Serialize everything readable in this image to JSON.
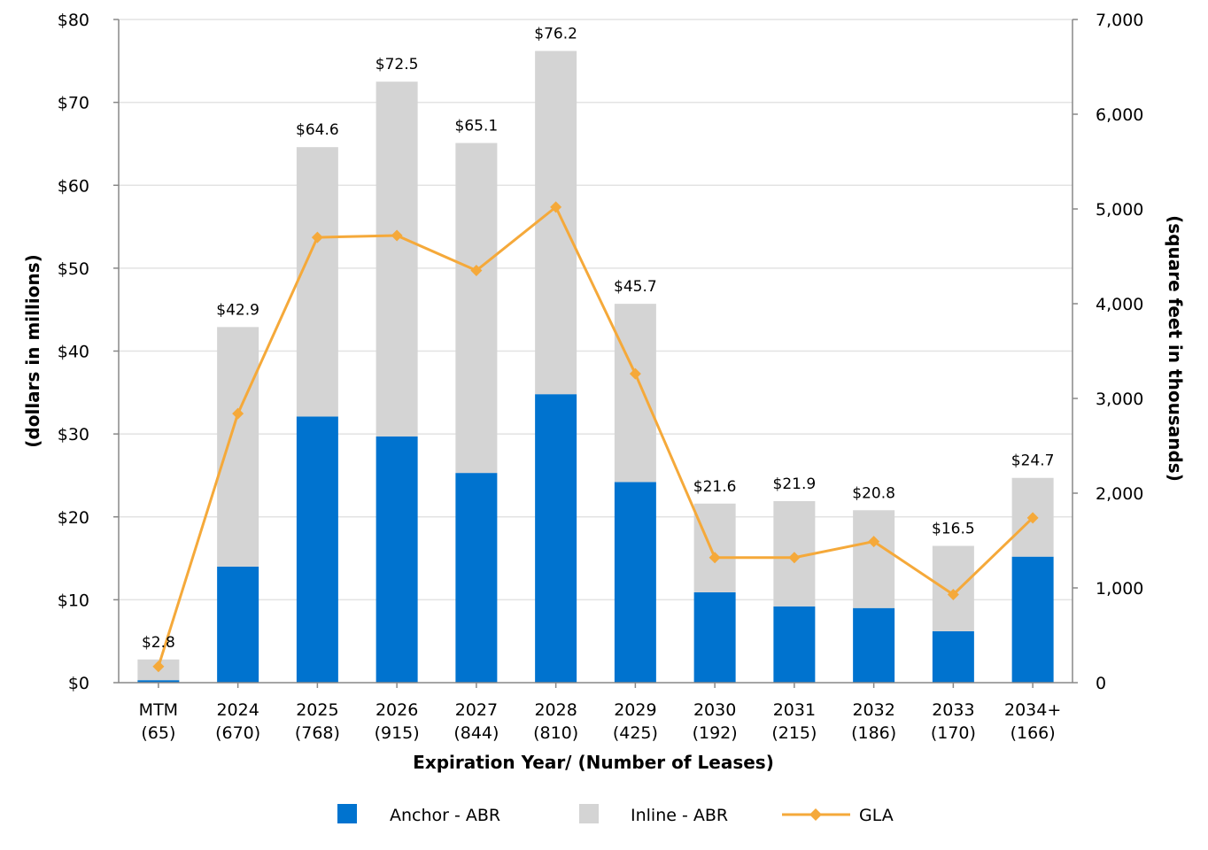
{
  "chart_data": {
    "type": "bar",
    "stacked": true,
    "categories": [
      "MTM",
      "2024",
      "2025",
      "2026",
      "2027",
      "2028",
      "2029",
      "2030",
      "2031",
      "2032",
      "2033",
      "2034+"
    ],
    "lease_counts": [
      "(65)",
      "(670)",
      "(768)",
      "(915)",
      "(844)",
      "(810)",
      "(425)",
      "(192)",
      "(215)",
      "(186)",
      "(170)",
      "(166)"
    ],
    "series": [
      {
        "name": "Anchor - ABR",
        "axis": "left",
        "color": "#0073cf",
        "values": [
          0.3,
          14.0,
          32.1,
          29.7,
          25.3,
          34.8,
          24.2,
          10.9,
          9.2,
          9.0,
          6.2,
          15.2
        ]
      },
      {
        "name": "Inline - ABR",
        "axis": "left",
        "color": "#d4d4d4",
        "values": [
          2.5,
          28.9,
          32.5,
          42.8,
          39.8,
          41.4,
          21.5,
          10.7,
          12.7,
          11.8,
          10.3,
          9.5
        ]
      },
      {
        "name": "GLA",
        "axis": "right",
        "type": "line",
        "color": "#f5a93a",
        "values": [
          170,
          2840,
          4700,
          4720,
          4350,
          5020,
          3260,
          1320,
          1320,
          1490,
          930,
          1740
        ]
      }
    ],
    "totals": [
      "$2.8",
      "$42.9",
      "$64.6",
      "$72.5",
      "$65.1",
      "$76.2",
      "$45.7",
      "$21.6",
      "$21.9",
      "$20.8",
      "$16.5",
      "$24.7"
    ],
    "y_left": {
      "label": "(dollars in millions)",
      "range": [
        0,
        80
      ],
      "ticks": [
        0,
        10,
        20,
        30,
        40,
        50,
        60,
        70,
        80
      ],
      "tick_labels": [
        "$0",
        "$10",
        "$20",
        "$30",
        "$40",
        "$50",
        "$60",
        "$70",
        "$80"
      ]
    },
    "y_right": {
      "label": "(square feet in thousands)",
      "range": [
        0,
        7000
      ],
      "ticks": [
        0,
        1000,
        2000,
        3000,
        4000,
        5000,
        6000,
        7000
      ],
      "tick_labels": [
        "0",
        "1,000",
        "2,000",
        "3,000",
        "4,000",
        "5,000",
        "6,000",
        "7,000"
      ]
    },
    "xlabel": "Expiration Year/ (Number of Leases)",
    "grid": true,
    "legend_position": "bottom"
  }
}
